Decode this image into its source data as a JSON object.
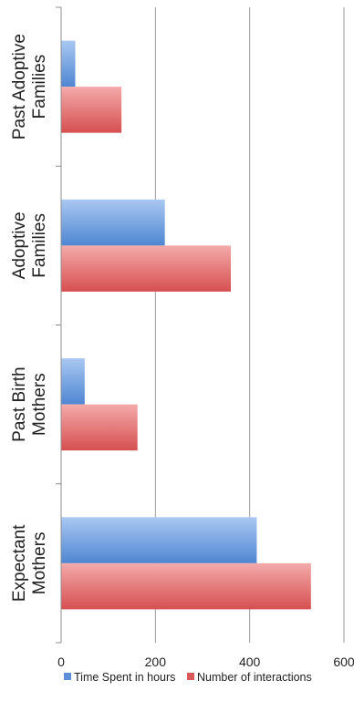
{
  "chart_data": {
    "type": "bar",
    "orientation": "horizontal",
    "categories": [
      "Past Adoptive Families",
      "Adoptive Families",
      "Past Birth Mothers",
      "Expectant Mothers"
    ],
    "category_label_lines": [
      [
        "Past Adoptive",
        "Families"
      ],
      [
        "Adoptive",
        "Families"
      ],
      [
        "Past Birth",
        "Mothers"
      ],
      [
        "Expectant",
        "Mothers"
      ]
    ],
    "series": [
      {
        "name": "Time Spent in hours",
        "color": "#5b8fd6",
        "values": [
          30,
          220,
          50,
          415
        ]
      },
      {
        "name": "Number of interactions",
        "color": "#d9585a",
        "values": [
          128,
          360,
          162,
          530
        ]
      }
    ],
    "xlim": [
      0,
      600
    ],
    "x_ticks": [
      "0",
      "200",
      "400",
      "600"
    ],
    "xlabel": "",
    "ylabel": "",
    "title": "",
    "grid": true,
    "legend_position": "bottom"
  }
}
